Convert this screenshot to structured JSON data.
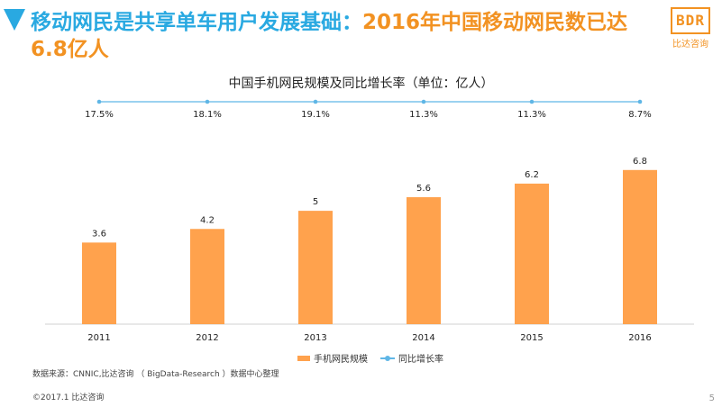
{
  "header": {
    "title_part1": "移动网民是共享单车用户发展基础：",
    "title_part2": "2016年中国移动网民数已达6.8亿人"
  },
  "brand": {
    "mark": "BDR",
    "sub": "比达咨询"
  },
  "colors": {
    "bar": "#ffa24d",
    "line": "#5fb6e6",
    "accent_blue": "#29a9e1",
    "accent_orange": "#f29222"
  },
  "chart_data": {
    "type": "bar",
    "title": "中国手机网民规模及同比增长率（单位：亿人）",
    "categories": [
      "2011",
      "2012",
      "2013",
      "2014",
      "2015",
      "2016"
    ],
    "series": [
      {
        "name": "手机网民规模",
        "type": "bar",
        "values": [
          3.6,
          4.2,
          5,
          5.6,
          6.2,
          6.8
        ],
        "labels": [
          "3.6",
          "4.2",
          "5",
          "5.6",
          "6.2",
          "6.8"
        ]
      },
      {
        "name": "同比增长率",
        "type": "line",
        "values": [
          17.5,
          18.1,
          19.1,
          11.3,
          11.3,
          8.7
        ],
        "labels": [
          "17.5%",
          "18.1%",
          "19.1%",
          "11.3%",
          "11.3%",
          "8.7%"
        ]
      }
    ],
    "ylim": [
      0,
      8.5
    ],
    "legend_position": "bottom"
  },
  "footer": {
    "source": "数据来源：CNNIC,比达咨询 （ BigData-Research ）数据中心整理",
    "copyright": "©2017.1 比达咨询",
    "page": "5"
  }
}
